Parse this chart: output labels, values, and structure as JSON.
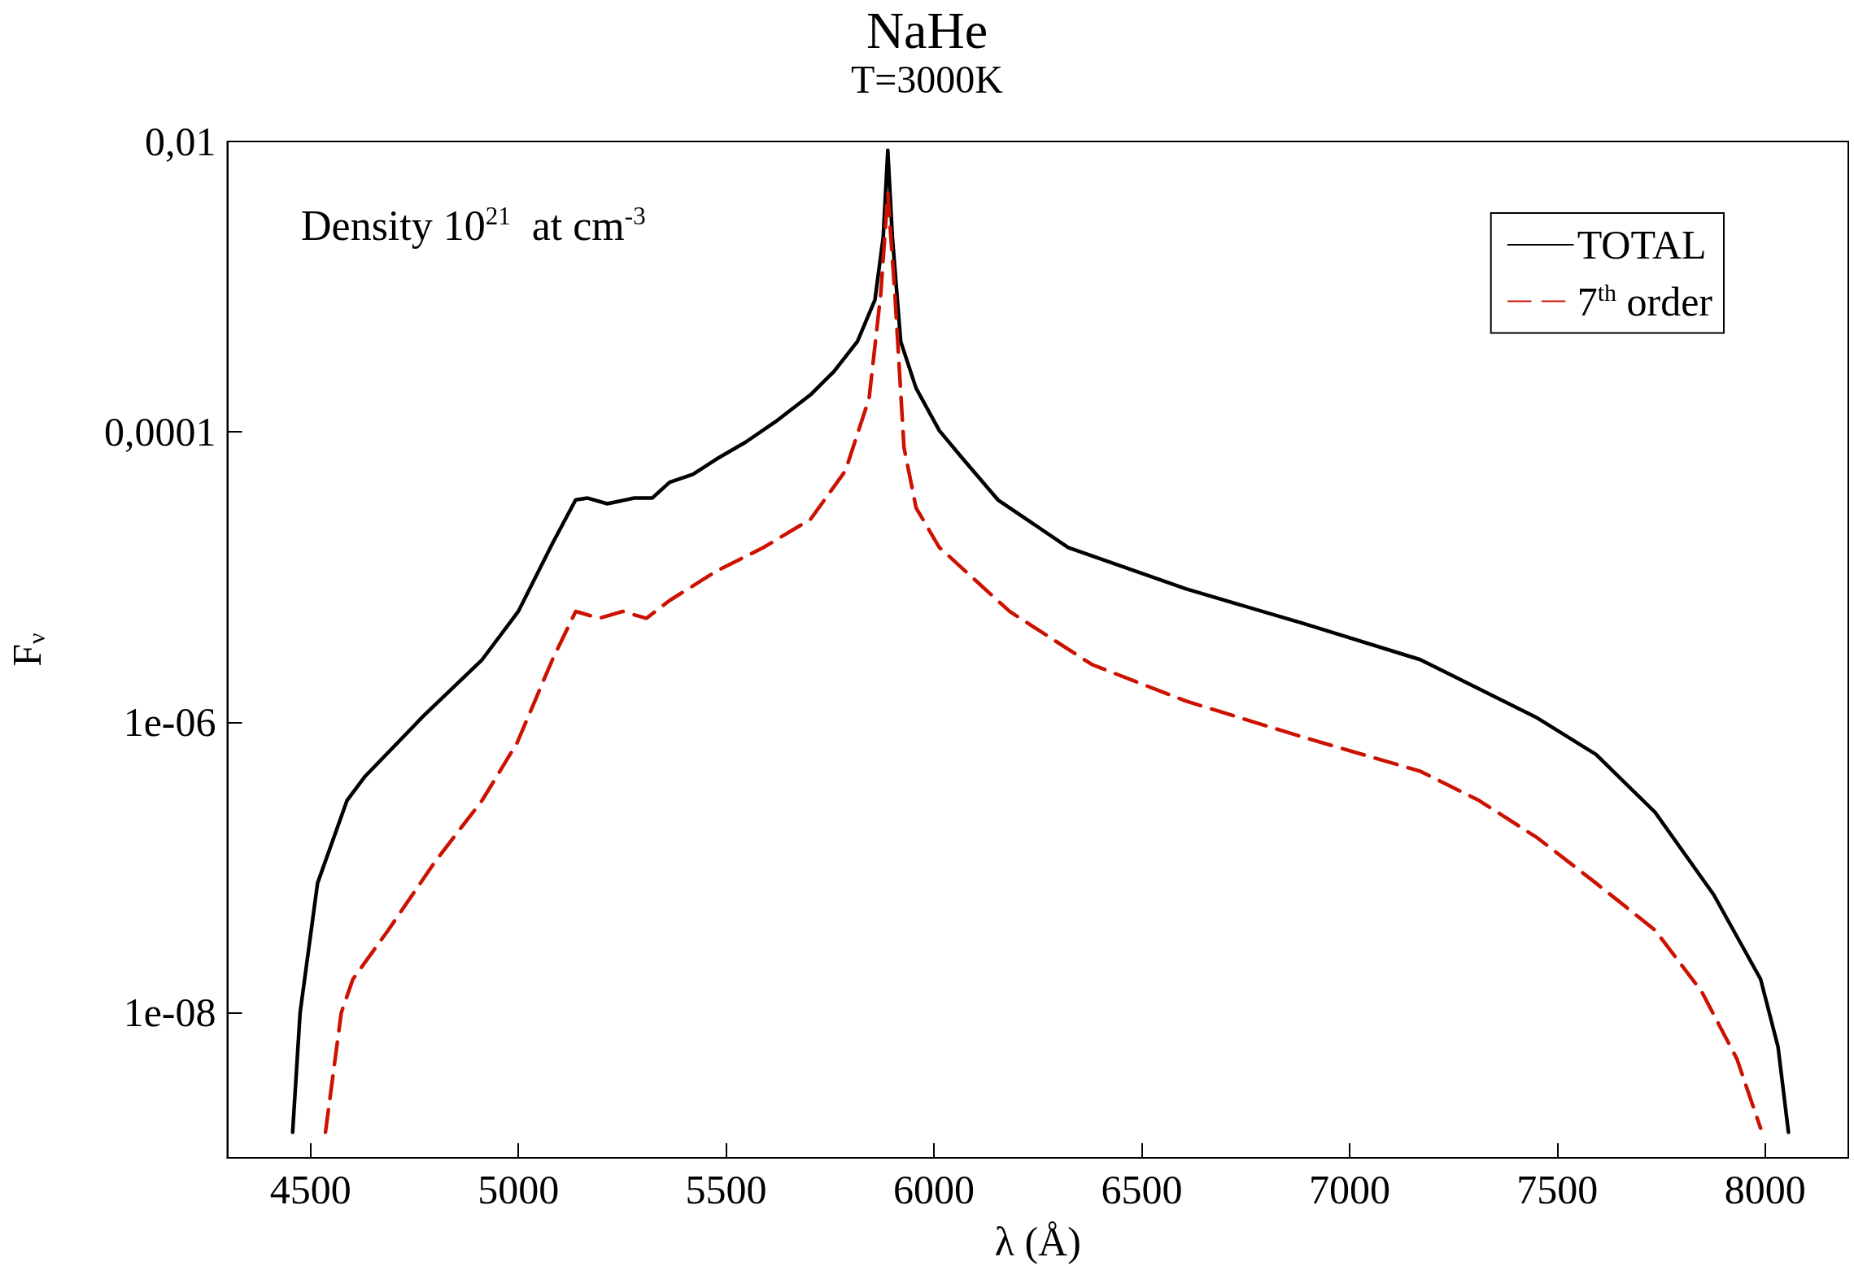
{
  "chart_data": {
    "type": "line",
    "title": "NaHe",
    "subtitle": "T=3000K",
    "xlabel": "λ (Å)",
    "ylabel": "F$_{ν}$",
    "annotations": [
      "Density 10$^{21}$  at cm$^{-3}$"
    ],
    "log": "y",
    "grid": false,
    "legend": "top right",
    "marker": "none",
    "xlim": [
      4300,
      8200
    ],
    "xticks": [
      4500,
      5000,
      5500,
      6000,
      6500,
      7000,
      7500,
      8000
    ],
    "ylim": [
      1e-09,
      0.01
    ],
    "yticks": [
      {
        "value": 0.01,
        "label": "0,01"
      },
      {
        "value": 0.0001,
        "label": "0,0001"
      },
      {
        "value": 1e-06,
        "label": "1e-06"
      },
      {
        "value": 1e-08,
        "label": "1e-08"
      }
    ],
    "series": [
      {
        "name": "TOTAL",
        "color": "#000000",
        "line_style": "solid",
        "x": [
          4457,
          4475,
          4517,
          4588,
          4630,
          4771,
          4913,
          5000,
          5082,
          5138,
          5167,
          5214,
          5279,
          5322,
          5364,
          5420,
          5477,
          5547,
          5618,
          5703,
          5759,
          5816,
          5858,
          5878,
          5889,
          5900,
          5920,
          5957,
          6013,
          6070,
          6154,
          6323,
          6606,
          6888,
          7170,
          7452,
          7593,
          7735,
          7876,
          7989,
          8031,
          8056
        ],
        "values": [
          1.5e-09,
          1e-08,
          7.8e-08,
          2.9e-07,
          4.2e-07,
          1.1e-06,
          2.7e-06,
          5.8e-06,
          1.7e-05,
          3.4e-05,
          3.5e-05,
          3.2e-05,
          3.5e-05,
          3.5e-05,
          4.5e-05,
          5.1e-05,
          6.5e-05,
          8.5e-05,
          0.000117,
          0.00018,
          0.00026,
          0.00042,
          0.00081,
          0.0022,
          0.0087,
          0.0022,
          0.00042,
          0.0002,
          0.000102,
          6.5e-05,
          3.4e-05,
          1.6e-05,
          8.3e-06,
          4.8e-06,
          2.7e-06,
          1.07e-06,
          6e-07,
          2.4e-07,
          6.5e-08,
          1.7e-08,
          5.8e-09,
          1.5e-09
        ]
      },
      {
        "name": "7$^{th}$ order",
        "color": "#cc1100",
        "line_style": "dashed",
        "x": [
          4536,
          4574,
          4602,
          4687,
          4800,
          4913,
          4997,
          5082,
          5138,
          5195,
          5251,
          5308,
          5364,
          5477,
          5590,
          5703,
          5787,
          5844,
          5872,
          5889,
          5906,
          5928,
          5957,
          6013,
          6182,
          6380,
          6606,
          6888,
          7170,
          7311,
          7452,
          7593,
          7735,
          7847,
          7932,
          7989
        ],
        "values": [
          1.5e-09,
          1e-08,
          1.7e-08,
          3.7e-08,
          1.1e-07,
          2.9e-07,
          7.2e-07,
          2.7e-06,
          5.8e-06,
          5.2e-06,
          5.8e-06,
          5.2e-06,
          6.9e-06,
          1.1e-05,
          1.6e-05,
          2.5e-05,
          5.4e-05,
          0.00017,
          0.00089,
          0.0044,
          0.00089,
          7.8e-05,
          3e-05,
          1.6e-05,
          5.8e-06,
          2.5e-06,
          1.4e-06,
          7.9e-07,
          4.6e-07,
          2.9e-07,
          1.6e-07,
          7.8e-08,
          3.7e-08,
          1.4e-08,
          4.8e-09,
          1.6e-09
        ]
      }
    ]
  }
}
